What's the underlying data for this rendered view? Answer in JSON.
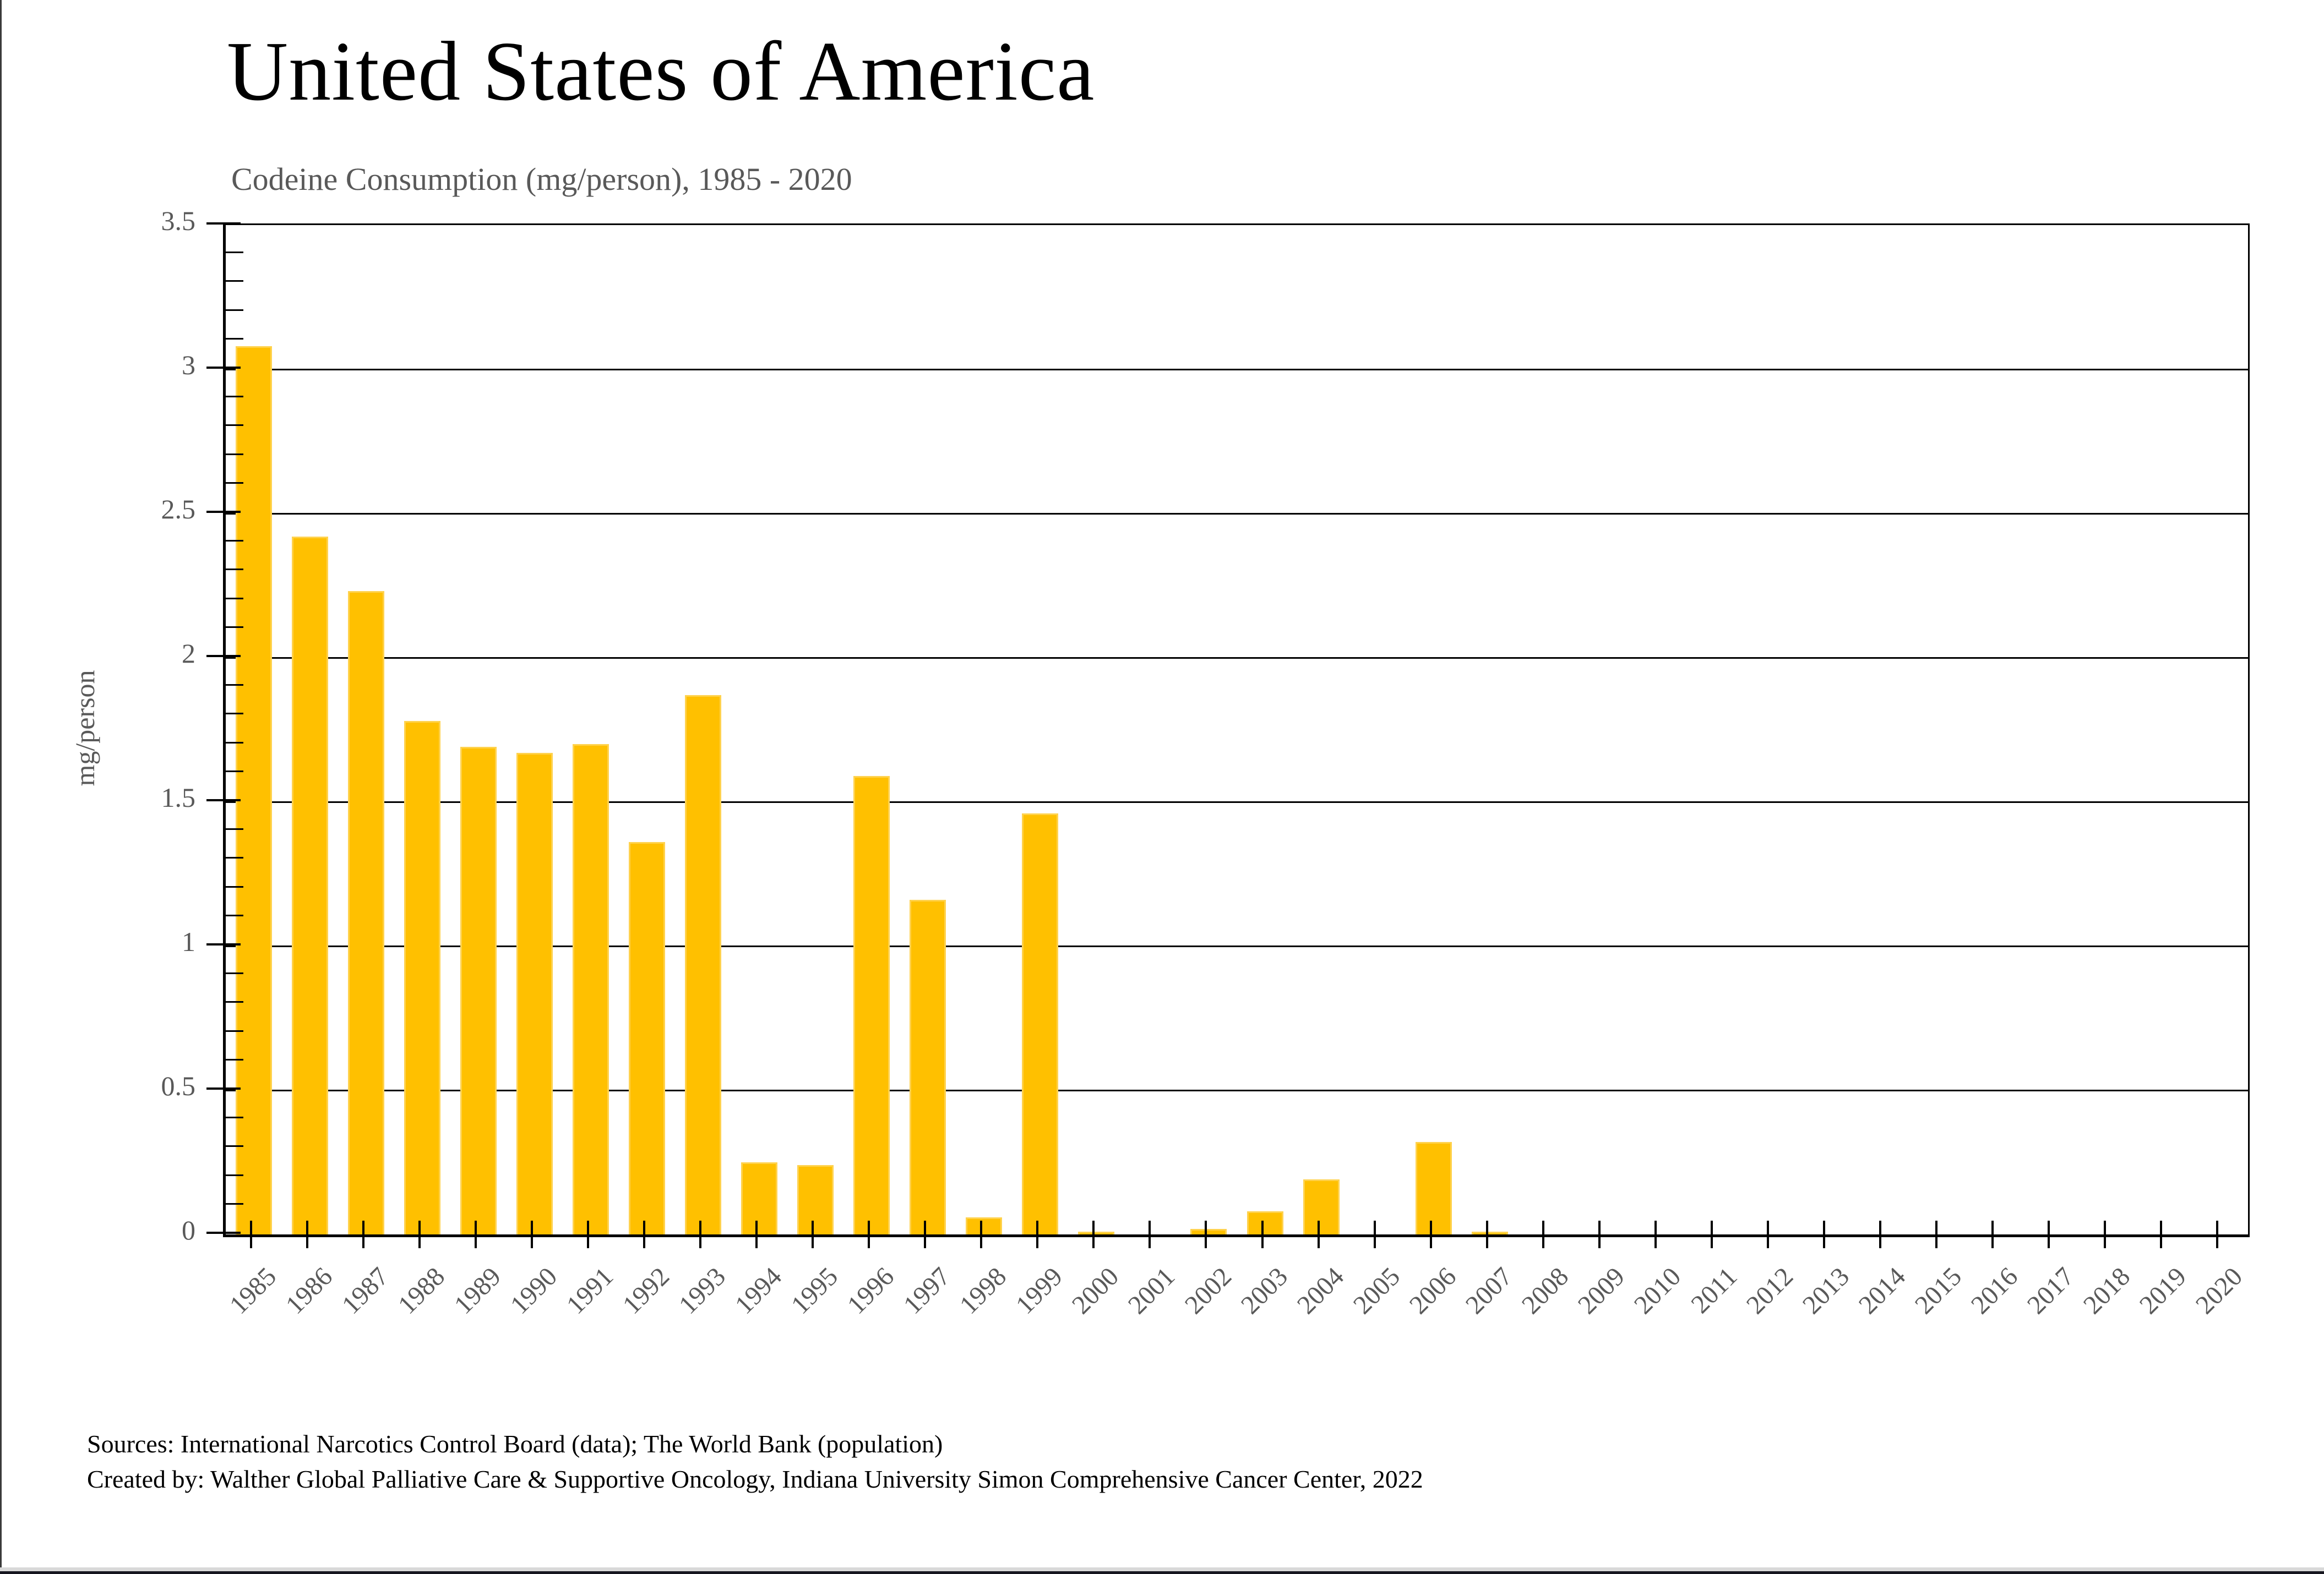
{
  "title": "United States of America",
  "subtitle": "Codeine Consumption (mg/person), 1985 - 2020",
  "footer": {
    "sources_line": "Sources: International Narcotics Control Board (data); The World Bank (population)",
    "created_line": "Created by: Walther Global Palliative Care & Supportive Oncology, Indiana University Simon Comprehensive Cancer Center, 2022"
  },
  "colors": {
    "bar_fill": "#FFC000",
    "bar_edge": "#FFD24D",
    "grid": "#000000",
    "axis_label_gray": "#595959",
    "title_black": "#000000"
  },
  "chart_data": {
    "type": "bar",
    "title": "United States of America",
    "subtitle": "Codeine Consumption (mg/person), 1985 - 2020",
    "xlabel": "",
    "ylabel": "mg/person",
    "ylim": [
      0,
      3.5
    ],
    "grid": "horizontal, every 0.5, black",
    "legend": "none",
    "categories": [
      "1985",
      "1986",
      "1987",
      "1988",
      "1989",
      "1990",
      "1991",
      "1992",
      "1993",
      "1994",
      "1995",
      "1996",
      "1997",
      "1998",
      "1999",
      "2000",
      "2001",
      "2002",
      "2003",
      "2004",
      "2005",
      "2006",
      "2007",
      "2008",
      "2009",
      "2010",
      "2011",
      "2012",
      "2013",
      "2014",
      "2015",
      "2016",
      "2017",
      "2018",
      "2019",
      "2020"
    ],
    "values": [
      3.08,
      2.42,
      2.23,
      1.78,
      1.69,
      1.67,
      1.7,
      1.36,
      1.87,
      0.25,
      0.24,
      1.59,
      1.16,
      0.06,
      1.46,
      0.01,
      0,
      0.02,
      0.08,
      0.19,
      0,
      0.32,
      0.01,
      0,
      0,
      0,
      0,
      0,
      0,
      0,
      0,
      0,
      0,
      0,
      0,
      0
    ],
    "y_tick_values": [
      0,
      0.5,
      1,
      1.5,
      2,
      2.5,
      3,
      3.5
    ],
    "y_tick_labels": [
      "0",
      "0.5",
      "1",
      "1.5",
      "2",
      "2.5",
      "3",
      "3.5"
    ],
    "y_minor_tick_step": 0.1
  }
}
